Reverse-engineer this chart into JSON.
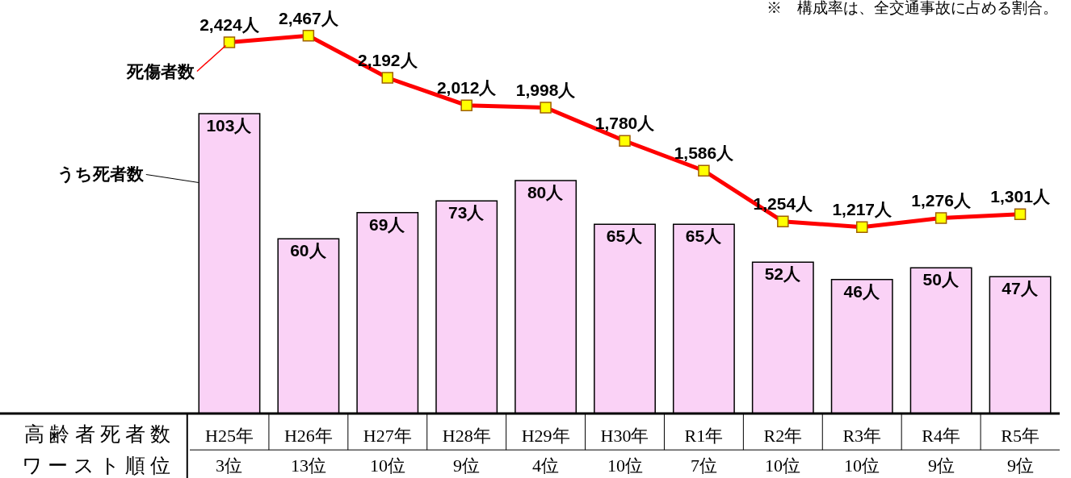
{
  "chart_data": {
    "type": "bar",
    "categories": [
      "H25年",
      "H26年",
      "H27年",
      "H28年",
      "H29年",
      "H30年",
      "R1年",
      "R2年",
      "R3年",
      "R4年",
      "R5年"
    ],
    "series": [
      {
        "name": "うち死者数",
        "color": "#fad2f6",
        "values": [
          103,
          60,
          69,
          73,
          80,
          65,
          65,
          52,
          46,
          50,
          47
        ],
        "value_labels": [
          "103人",
          "60人",
          "69人",
          "73人",
          "80人",
          "65人",
          "65人",
          "52人",
          "46人",
          "50人",
          "47人"
        ]
      },
      {
        "name": "死傷者数",
        "type": "line",
        "axis": "y2",
        "color": "#ff0000",
        "values": [
          2424,
          2467,
          2192,
          2012,
          1998,
          1780,
          1586,
          1254,
          1217,
          1276,
          1301
        ],
        "value_labels": [
          "2,424人",
          "2,467人",
          "2,192人",
          "2,012人",
          "1,998人",
          "1,780人",
          "1,586人",
          "1,254人",
          "1,217人",
          "1,276人",
          "1,301人"
        ]
      }
    ],
    "ylim": [
      0,
      142
    ],
    "y2lim": [
      0,
      2700
    ],
    "tick_labels": "x",
    "grid": false,
    "legend": "left",
    "marker": "square",
    "annotations": [
      "※　構成率は、全交通事故に占める割合。",
      "高齢者死者数",
      "ワースト順位",
      "3位",
      "13位",
      "10位",
      "9位",
      "4位",
      "10位",
      "7位",
      "10位",
      "10位",
      "9位",
      "9位"
    ]
  }
}
